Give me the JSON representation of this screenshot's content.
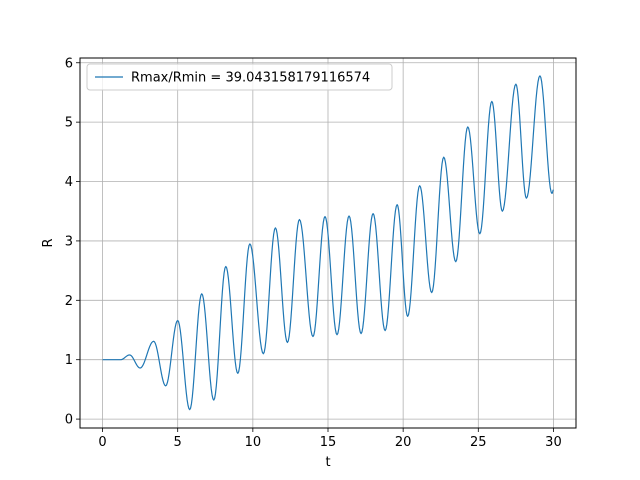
{
  "chart_data": {
    "type": "line",
    "xlabel": "t",
    "ylabel": "R",
    "xlim": [
      -1.5,
      31.5
    ],
    "ylim": [
      -0.15,
      6.08
    ],
    "xticks": [
      0,
      5,
      10,
      15,
      20,
      25,
      30
    ],
    "yticks": [
      0,
      1,
      2,
      3,
      4,
      5,
      6
    ],
    "grid": true,
    "legend_position": "top-left",
    "series": [
      {
        "name": "Rmax/Rmin = 39.043158179116574",
        "color": "#1f77b4",
        "extrema": [
          [
            0.0,
            1.0
          ],
          [
            1.2,
            1.0
          ],
          [
            1.8,
            1.08
          ],
          [
            2.5,
            0.86
          ],
          [
            3.4,
            1.31
          ],
          [
            4.2,
            0.56
          ],
          [
            5.0,
            1.66
          ],
          [
            5.8,
            0.16
          ],
          [
            6.6,
            2.11
          ],
          [
            7.4,
            0.32
          ],
          [
            8.2,
            2.57
          ],
          [
            9.0,
            0.77
          ],
          [
            9.8,
            2.95
          ],
          [
            10.7,
            1.1
          ],
          [
            11.5,
            3.22
          ],
          [
            12.3,
            1.29
          ],
          [
            13.1,
            3.36
          ],
          [
            14.0,
            1.39
          ],
          [
            14.8,
            3.41
          ],
          [
            15.6,
            1.42
          ],
          [
            16.4,
            3.42
          ],
          [
            17.2,
            1.44
          ],
          [
            18.0,
            3.46
          ],
          [
            18.8,
            1.49
          ],
          [
            19.6,
            3.61
          ],
          [
            20.3,
            1.73
          ],
          [
            21.1,
            3.93
          ],
          [
            21.9,
            2.13
          ],
          [
            22.7,
            4.41
          ],
          [
            23.5,
            2.65
          ],
          [
            24.3,
            4.92
          ],
          [
            25.1,
            3.12
          ],
          [
            25.9,
            5.35
          ],
          [
            26.6,
            3.5
          ],
          [
            27.5,
            5.64
          ],
          [
            28.2,
            3.72
          ],
          [
            29.1,
            5.78
          ],
          [
            29.9,
            3.8
          ],
          [
            30.0,
            3.86
          ]
        ]
      }
    ]
  }
}
